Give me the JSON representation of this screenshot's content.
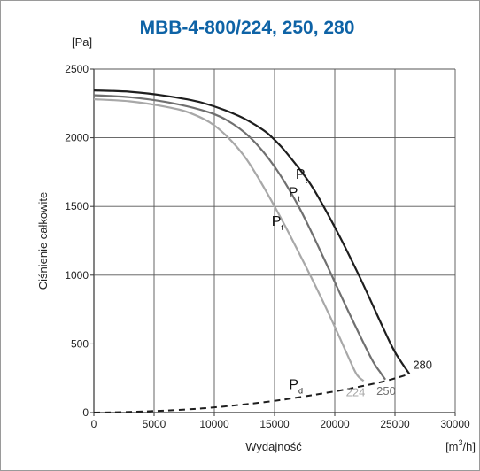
{
  "chart_data": {
    "type": "line",
    "title": "MBB-4-800/224, 250, 280",
    "y_unit": "[Pa]",
    "ylabel": "Ciśnienie całkowite",
    "xlabel": "Wydajność",
    "x_unit_prefix": "[m",
    "x_unit_exp": "3",
    "x_unit_suffix": "/h]",
    "xlim": [
      0,
      30000
    ],
    "ylim": [
      0,
      2500
    ],
    "xticks": [
      "0",
      "5000",
      "10000",
      "15000",
      "20000",
      "25000",
      "30000"
    ],
    "yticks": [
      "0",
      "500",
      "1000",
      "1500",
      "2000",
      "2500"
    ],
    "grid": true,
    "series": [
      {
        "name": "280",
        "color": "#1e1e1e",
        "points": [
          [
            0,
            2345
          ],
          [
            3000,
            2335
          ],
          [
            6000,
            2305
          ],
          [
            9000,
            2255
          ],
          [
            12000,
            2160
          ],
          [
            14000,
            2060
          ],
          [
            15000,
            1985
          ],
          [
            16000,
            1890
          ],
          [
            18000,
            1660
          ],
          [
            20000,
            1350
          ],
          [
            22000,
            1000
          ],
          [
            24000,
            620
          ],
          [
            25000,
            440
          ],
          [
            26200,
            280
          ]
        ]
      },
      {
        "name": "250",
        "color": "#707070",
        "points": [
          [
            0,
            2310
          ],
          [
            3000,
            2295
          ],
          [
            6000,
            2260
          ],
          [
            9000,
            2200
          ],
          [
            11000,
            2130
          ],
          [
            13000,
            2000
          ],
          [
            15000,
            1790
          ],
          [
            17000,
            1500
          ],
          [
            19000,
            1140
          ],
          [
            21000,
            760
          ],
          [
            23000,
            400
          ],
          [
            23800,
            290
          ],
          [
            24200,
            240
          ]
        ]
      },
      {
        "name": "224",
        "color": "#a8a8a8",
        "points": [
          [
            0,
            2280
          ],
          [
            3000,
            2265
          ],
          [
            6000,
            2225
          ],
          [
            8000,
            2180
          ],
          [
            10000,
            2090
          ],
          [
            12000,
            1920
          ],
          [
            13500,
            1730
          ],
          [
            15500,
            1420
          ],
          [
            17500,
            1080
          ],
          [
            19500,
            720
          ],
          [
            21000,
            430
          ],
          [
            21800,
            280
          ],
          [
            22400,
            230
          ]
        ]
      }
    ],
    "dynamic_pressure": {
      "label_main": "P",
      "label_sub": "d",
      "points": [
        [
          0,
          0
        ],
        [
          3000,
          5
        ],
        [
          6000,
          15
        ],
        [
          9000,
          30
        ],
        [
          12000,
          55
        ],
        [
          15000,
          85
        ],
        [
          18000,
          125
        ],
        [
          21000,
          170
        ],
        [
          24000,
          225
        ],
        [
          26200,
          280
        ]
      ]
    },
    "curve_label_main": "P",
    "curve_label_sub": "t"
  }
}
